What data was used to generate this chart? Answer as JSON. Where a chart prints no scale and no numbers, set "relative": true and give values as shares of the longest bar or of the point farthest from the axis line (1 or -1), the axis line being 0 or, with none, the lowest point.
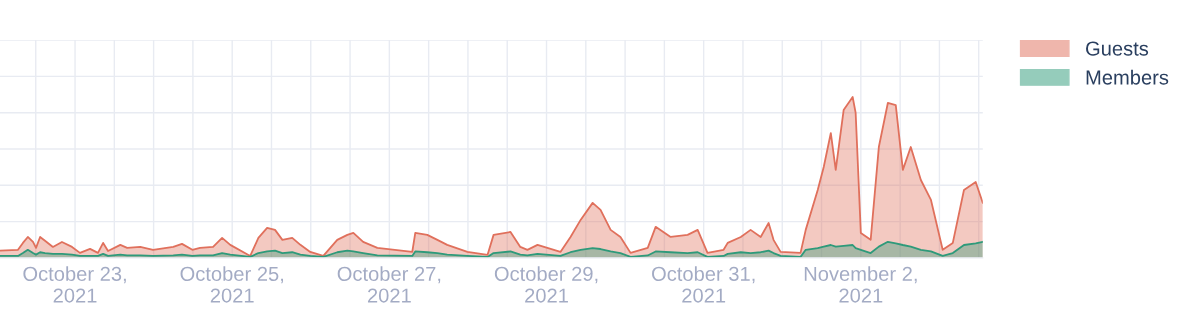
{
  "chart_data": {
    "type": "area",
    "relative": true,
    "grid": true,
    "legend": "top right",
    "tick_labels": "x",
    "x": [
      "2021-10-22T01:05",
      "2021-10-22T06:35",
      "2021-10-22T08:05",
      "2021-10-22T09:35",
      "2021-10-22T11:10",
      "2021-10-22T12:05",
      "2021-10-22T13:20",
      "2021-10-22T14:50",
      "2021-10-22T17:15",
      "2021-10-22T20:00",
      "2021-10-22T23:05",
      "2021-10-23T01:30",
      "2021-10-23T04:35",
      "2021-10-23T07:00",
      "2021-10-23T08:35",
      "2021-10-23T10:05",
      "2021-10-23T13:50",
      "2021-10-23T15:55",
      "2021-10-23T19:55",
      "2021-10-23T23:50",
      "2021-10-24T06:00",
      "2021-10-24T08:40",
      "2021-10-24T11:50",
      "2021-10-24T14:10",
      "2021-10-24T18:10",
      "2021-10-24T20:55",
      "2021-10-24T23:25",
      "2021-10-25T05:30",
      "2021-10-25T08:00",
      "2021-10-25T10:40",
      "2021-10-25T13:05",
      "2021-10-25T15:20",
      "2021-10-25T18:20",
      "2021-10-25T20:50",
      "2021-10-25T23:50",
      "2021-10-26T03:50",
      "2021-10-26T08:05",
      "2021-10-26T11:10",
      "2021-10-26T13:00",
      "2021-10-26T16:00",
      "2021-10-26T20:20",
      "2021-10-27T07:00",
      "2021-10-27T07:55",
      "2021-10-27T11:35",
      "2021-10-27T14:40",
      "2021-10-27T17:40",
      "2021-10-27T23:50",
      "2021-10-28T06:00",
      "2021-10-28T07:50",
      "2021-10-28T13:00",
      "2021-10-28T16:00",
      "2021-10-28T18:10",
      "2021-10-28T21:15",
      "2021-10-29T04:15",
      "2021-10-29T07:20",
      "2021-10-29T10:25",
      "2021-10-29T14:05",
      "2021-10-29T16:30",
      "2021-10-29T19:35",
      "2021-10-29T22:35",
      "2021-10-30T01:40",
      "2021-10-30T06:55",
      "2021-10-30T09:20",
      "2021-10-30T13:55",
      "2021-10-30T19:05",
      "2021-10-30T22:10",
      "2021-10-31T01:10",
      "2021-10-31T06:05",
      "2021-10-31T07:20",
      "2021-10-31T11:20",
      "2021-10-31T14:20",
      "2021-10-31T17:25",
      "2021-10-31T19:50",
      "2021-10-31T21:20",
      "2021-10-31T23:30",
      "2021-11-01T05:35",
      "2021-11-01T07:10",
      "2021-11-01T10:50",
      "2021-11-01T12:40",
      "2021-11-01T14:50",
      "2021-11-01T16:20",
      "2021-11-01T18:45",
      "2021-11-01T21:30",
      "2021-11-01T22:25",
      "2021-11-02T00:00",
      "2021-11-02T03:00",
      "2021-11-02T05:30",
      "2021-11-02T08:15",
      "2021-11-02T10:40",
      "2021-11-02T12:50",
      "2021-11-02T15:15",
      "2021-11-02T18:20",
      "2021-11-02T21:25",
      "2021-11-03T01:00",
      "2021-11-03T04:05",
      "2021-11-03T07:30",
      "2021-11-03T11:05",
      "2021-11-03T13:15"
    ],
    "series": [
      {
        "name": "Guests",
        "color": "#e0705c",
        "values": [
          0.045,
          0.05,
          0.093,
          0.13,
          0.099,
          0.062,
          0.13,
          0.106,
          0.068,
          0.099,
          0.068,
          0.031,
          0.056,
          0.031,
          0.093,
          0.043,
          0.081,
          0.062,
          0.068,
          0.05,
          0.068,
          0.087,
          0.05,
          0.062,
          0.068,
          0.124,
          0.081,
          0.012,
          0.124,
          0.186,
          0.174,
          0.112,
          0.124,
          0.081,
          0.037,
          0.012,
          0.112,
          0.143,
          0.155,
          0.099,
          0.062,
          0.037,
          0.155,
          0.143,
          0.112,
          0.081,
          0.037,
          0.019,
          0.143,
          0.161,
          0.068,
          0.05,
          0.081,
          0.037,
          0.13,
          0.236,
          0.342,
          0.298,
          0.174,
          0.13,
          0.031,
          0.062,
          0.193,
          0.13,
          0.143,
          0.174,
          0.031,
          0.05,
          0.093,
          0.13,
          0.174,
          0.13,
          0.217,
          0.112,
          0.037,
          0.031,
          0.174,
          0.422,
          0.565,
          0.776,
          0.547,
          0.919,
          1.0,
          0.901,
          0.155,
          0.112,
          0.689,
          0.963,
          0.95,
          0.547,
          0.689,
          0.484,
          0.36,
          0.05,
          0.093,
          0.422,
          0.472,
          0.342
        ]
      },
      {
        "name": "Members",
        "color": "#2e9a7a",
        "values": [
          0.012,
          0.012,
          0.03,
          0.05,
          0.03,
          0.02,
          0.035,
          0.03,
          0.025,
          0.025,
          0.02,
          0.012,
          0.012,
          0.012,
          0.025,
          0.012,
          0.02,
          0.015,
          0.015,
          0.012,
          0.015,
          0.02,
          0.012,
          0.015,
          0.015,
          0.03,
          0.02,
          0.006,
          0.03,
          0.04,
          0.045,
          0.03,
          0.035,
          0.02,
          0.012,
          0.006,
          0.035,
          0.045,
          0.04,
          0.03,
          0.015,
          0.012,
          0.04,
          0.035,
          0.03,
          0.02,
          0.012,
          0.006,
          0.03,
          0.04,
          0.02,
          0.015,
          0.025,
          0.012,
          0.035,
          0.05,
          0.06,
          0.055,
          0.04,
          0.03,
          0.006,
          0.015,
          0.04,
          0.035,
          0.03,
          0.035,
          0.006,
          0.012,
          0.025,
          0.035,
          0.03,
          0.035,
          0.045,
          0.03,
          0.012,
          0.006,
          0.05,
          0.06,
          0.07,
          0.08,
          0.07,
          0.075,
          0.08,
          0.06,
          0.05,
          0.03,
          0.07,
          0.1,
          0.09,
          0.08,
          0.07,
          0.05,
          0.04,
          0.012,
          0.03,
          0.08,
          0.09,
          0.1
        ]
      }
    ],
    "xlim": [
      "2021-10-22T01:05",
      "2021-11-03T13:15"
    ],
    "xticks": [
      {
        "value": "2021-10-22T12:00",
        "label": null
      },
      {
        "value": "2021-10-23",
        "label": "October 23,\n2021"
      },
      {
        "value": "2021-10-23T12:00",
        "label": null
      },
      {
        "value": "2021-10-24",
        "label": null
      },
      {
        "value": "2021-10-24T12:00",
        "label": null
      },
      {
        "value": "2021-10-25",
        "label": "October 25,\n2021"
      },
      {
        "value": "2021-10-25T12:00",
        "label": null
      },
      {
        "value": "2021-10-26",
        "label": null
      },
      {
        "value": "2021-10-26T12:00",
        "label": null
      },
      {
        "value": "2021-10-27",
        "label": "October 27,\n2021"
      },
      {
        "value": "2021-10-27T12:00",
        "label": null
      },
      {
        "value": "2021-10-28",
        "label": null
      },
      {
        "value": "2021-10-28T12:00",
        "label": null
      },
      {
        "value": "2021-10-29",
        "label": "October 29,\n2021"
      },
      {
        "value": "2021-10-29T12:00",
        "label": null
      },
      {
        "value": "2021-10-30",
        "label": null
      },
      {
        "value": "2021-10-30T12:00",
        "label": null
      },
      {
        "value": "2021-10-31",
        "label": "October 31,\n2021"
      },
      {
        "value": "2021-10-31T12:00",
        "label": null
      },
      {
        "value": "2021-11-01",
        "label": null
      },
      {
        "value": "2021-11-01T12:00",
        "label": null
      },
      {
        "value": "2021-11-02",
        "label": "November 2,\n2021"
      },
      {
        "value": "2021-11-02T12:00",
        "label": null
      },
      {
        "value": "2021-11-03",
        "label": null
      },
      {
        "value": "2021-11-03T12:00",
        "label": null
      }
    ]
  }
}
